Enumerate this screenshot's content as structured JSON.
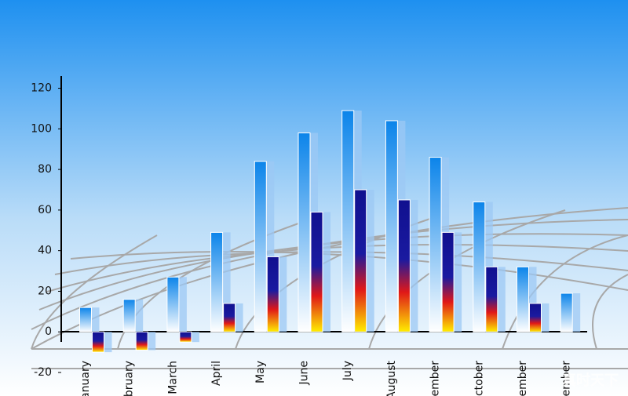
{
  "chart_data": {
    "type": "bar",
    "categories": [
      "anuary",
      "ebruary",
      "March",
      "April",
      "May",
      "June",
      "July",
      "August",
      "ember",
      "October",
      "vember",
      "cember"
    ],
    "series": [
      {
        "color": "#0b84ea",
        "values": [
          12,
          16,
          27,
          49,
          84,
          98,
          109,
          104,
          86,
          64,
          32,
          19
        ]
      },
      {
        "color": "#10108f",
        "values": [
          -10,
          -9,
          -5,
          14,
          37,
          59,
          70,
          65,
          49,
          32,
          14,
          null
        ]
      }
    ],
    "ylim": [
      -20,
      126
    ],
    "yticks": [
      -20,
      0,
      20,
      40,
      60,
      80,
      100,
      120
    ],
    "watermark": "真时天下"
  }
}
